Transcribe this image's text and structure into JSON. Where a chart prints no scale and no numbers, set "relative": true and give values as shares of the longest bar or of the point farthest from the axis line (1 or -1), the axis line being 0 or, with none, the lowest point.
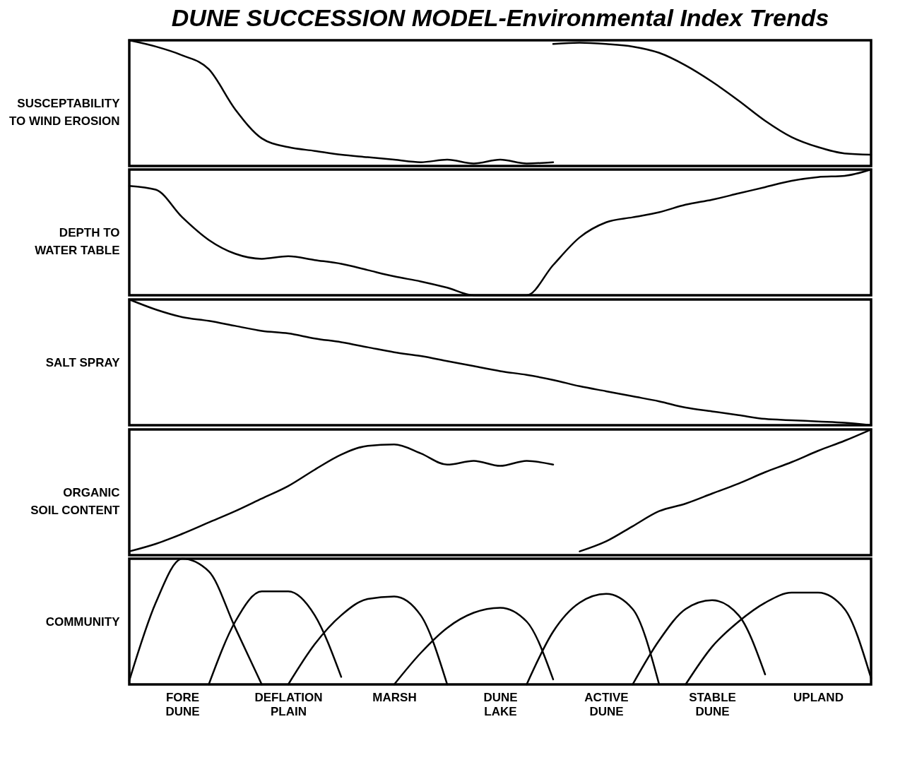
{
  "chart_data": [
    {
      "type": "line",
      "title": "DUNE SUCCESSION MODEL-Environmental Index Trends",
      "ylabel": "SUSCEPTABILITY TO WIND EROSION",
      "relative": true,
      "tick_labels": false,
      "line_style": "solid",
      "marker": "none",
      "grid": false,
      "categories": [
        null,
        null,
        null,
        null,
        null,
        null,
        null,
        null,
        null,
        null,
        null,
        null,
        null,
        null,
        null,
        null,
        null,
        null,
        null,
        null,
        null,
        null,
        null,
        null,
        null,
        null,
        null,
        null,
        null
      ],
      "series": [
        {
          "color": "#000000",
          "values": [
            1,
            0.95,
            0.88,
            0.77,
            0.45,
            0.22,
            0.15,
            0.12,
            0.09,
            0.07,
            0.05,
            0.03,
            0.05,
            0.02,
            0.05,
            0.02,
            0.03,
            null,
            null,
            null,
            null,
            null,
            null,
            null,
            null,
            null,
            null,
            null,
            null
          ]
        },
        {
          "color": "#000000",
          "values": [
            null,
            null,
            null,
            null,
            null,
            null,
            null,
            null,
            null,
            null,
            null,
            null,
            null,
            null,
            null,
            null,
            0.97,
            0.98,
            0.97,
            0.95,
            0.9,
            0.8,
            0.67,
            0.52,
            0.36,
            0.23,
            0.15,
            0.1,
            0.09
          ]
        }
      ]
    },
    {
      "type": "line",
      "ylabel": "DEPTH TO WATER TABLE",
      "relative": true,
      "tick_labels": false,
      "line_style": "solid",
      "marker": "none",
      "grid": false,
      "categories": [
        null,
        null,
        null,
        null,
        null,
        null,
        null,
        null,
        null,
        null,
        null,
        null,
        null,
        null,
        null,
        null,
        null,
        null,
        null,
        null,
        null,
        null,
        null,
        null,
        null,
        null,
        null,
        null,
        null
      ],
      "series": [
        {
          "color": "#000000",
          "values": [
            0.87,
            0.84,
            0.62,
            0.44,
            0.33,
            0.29,
            0.31,
            0.28,
            0.25,
            0.2,
            0.15,
            0.11,
            0.06,
            0,
            0,
            0,
            0.24,
            0.46,
            0.58,
            0.62,
            0.66,
            0.72,
            0.76,
            0.81,
            0.86,
            0.91,
            0.94,
            0.95,
            1
          ]
        }
      ]
    },
    {
      "type": "line",
      "ylabel": "SALT SPRAY",
      "relative": true,
      "tick_labels": false,
      "line_style": "solid",
      "marker": "none",
      "grid": false,
      "categories": [
        null,
        null,
        null,
        null,
        null,
        null,
        null,
        null,
        null,
        null,
        null,
        null,
        null,
        null,
        null,
        null,
        null,
        null,
        null,
        null,
        null,
        null,
        null,
        null,
        null,
        null,
        null,
        null,
        null
      ],
      "series": [
        {
          "color": "#000000",
          "values": [
            1,
            0.92,
            0.86,
            0.83,
            0.79,
            0.75,
            0.73,
            0.69,
            0.66,
            0.62,
            0.58,
            0.55,
            0.51,
            0.47,
            0.43,
            0.4,
            0.36,
            0.31,
            0.27,
            0.23,
            0.19,
            0.14,
            0.11,
            0.08,
            0.05,
            0.04,
            0.03,
            0.02,
            0
          ]
        }
      ]
    },
    {
      "type": "line",
      "ylabel": "ORGANIC SOIL CONTENT",
      "relative": true,
      "tick_labels": false,
      "line_style": "solid",
      "marker": "none",
      "grid": false,
      "categories": [
        null,
        null,
        null,
        null,
        null,
        null,
        null,
        null,
        null,
        null,
        null,
        null,
        null,
        null,
        null,
        null,
        null,
        null,
        null,
        null,
        null,
        null,
        null,
        null,
        null,
        null,
        null,
        null,
        null
      ],
      "series": [
        {
          "color": "#000000",
          "values": [
            0.03,
            0.09,
            0.17,
            0.26,
            0.35,
            0.45,
            0.55,
            0.68,
            0.8,
            0.87,
            0.88,
            0.81,
            0.72,
            0.75,
            0.71,
            0.75,
            0.72,
            null,
            null,
            null,
            null,
            null,
            null,
            null,
            null,
            null,
            null,
            null,
            null
          ]
        },
        {
          "color": "#000000",
          "values": [
            null,
            null,
            null,
            null,
            null,
            null,
            null,
            null,
            null,
            null,
            null,
            null,
            null,
            null,
            null,
            null,
            null,
            0.03,
            0.11,
            0.23,
            0.35,
            0.41,
            0.49,
            0.57,
            0.66,
            0.74,
            0.83,
            0.91,
            1
          ]
        }
      ]
    },
    {
      "type": "line",
      "ylabel": "COMMUNITY",
      "relative": true,
      "tick_labels": "x",
      "line_style": "solid",
      "marker": "none",
      "grid": false,
      "categories": [
        null,
        null,
        "FORE DUNE",
        null,
        null,
        null,
        "DEFLATION PLAIN",
        null,
        null,
        null,
        "MARSH",
        null,
        null,
        null,
        "DUNE LAKE",
        null,
        null,
        null,
        "ACTIVE DUNE",
        null,
        null,
        null,
        "STABLE DUNE",
        null,
        null,
        null,
        "UPLAND",
        null,
        null
      ],
      "series": [
        {
          "color": "#000000",
          "values": [
            0.03,
            0.65,
            1,
            0.9,
            0.45,
            0,
            null,
            null,
            null,
            null,
            null,
            null,
            null,
            null,
            null,
            null,
            null,
            null,
            null,
            null,
            null,
            null,
            null,
            null,
            null,
            null,
            null,
            null,
            null
          ]
        },
        {
          "color": "#000000",
          "values": [
            null,
            null,
            null,
            0,
            0.5,
            0.74,
            0.74,
            0.55,
            0.06,
            null,
            null,
            null,
            null,
            null,
            null,
            null,
            null,
            null,
            null,
            null,
            null,
            null,
            null,
            null,
            null,
            null,
            null,
            null,
            null
          ]
        },
        {
          "color": "#000000",
          "values": [
            null,
            null,
            null,
            null,
            null,
            null,
            0,
            0.32,
            0.55,
            0.68,
            0.7,
            0.55,
            0,
            null,
            null,
            null,
            null,
            null,
            null,
            null,
            null,
            null,
            null,
            null,
            null,
            null,
            null,
            null,
            null
          ]
        },
        {
          "color": "#000000",
          "values": [
            null,
            null,
            null,
            null,
            null,
            null,
            null,
            null,
            null,
            null,
            0,
            0.25,
            0.45,
            0.57,
            0.61,
            0.5,
            0.04,
            null,
            null,
            null,
            null,
            null,
            null,
            null,
            null,
            null,
            null,
            null,
            null
          ]
        },
        {
          "color": "#000000",
          "values": [
            null,
            null,
            null,
            null,
            null,
            null,
            null,
            null,
            null,
            null,
            null,
            null,
            null,
            null,
            null,
            0,
            0.42,
            0.65,
            0.72,
            0.6,
            0,
            null,
            null,
            null,
            null,
            null,
            null,
            null,
            null
          ]
        },
        {
          "color": "#000000",
          "values": [
            null,
            null,
            null,
            null,
            null,
            null,
            null,
            null,
            null,
            null,
            null,
            null,
            null,
            null,
            null,
            null,
            null,
            null,
            null,
            0,
            0.35,
            0.6,
            0.67,
            0.55,
            0.08,
            null,
            null,
            null,
            null
          ]
        },
        {
          "color": "#000000",
          "values": [
            null,
            null,
            null,
            null,
            null,
            null,
            null,
            null,
            null,
            null,
            null,
            null,
            null,
            null,
            null,
            null,
            null,
            null,
            null,
            null,
            null,
            0,
            0.3,
            0.5,
            0.65,
            0.73,
            0.73,
            0.6,
            0.05
          ]
        }
      ]
    }
  ]
}
